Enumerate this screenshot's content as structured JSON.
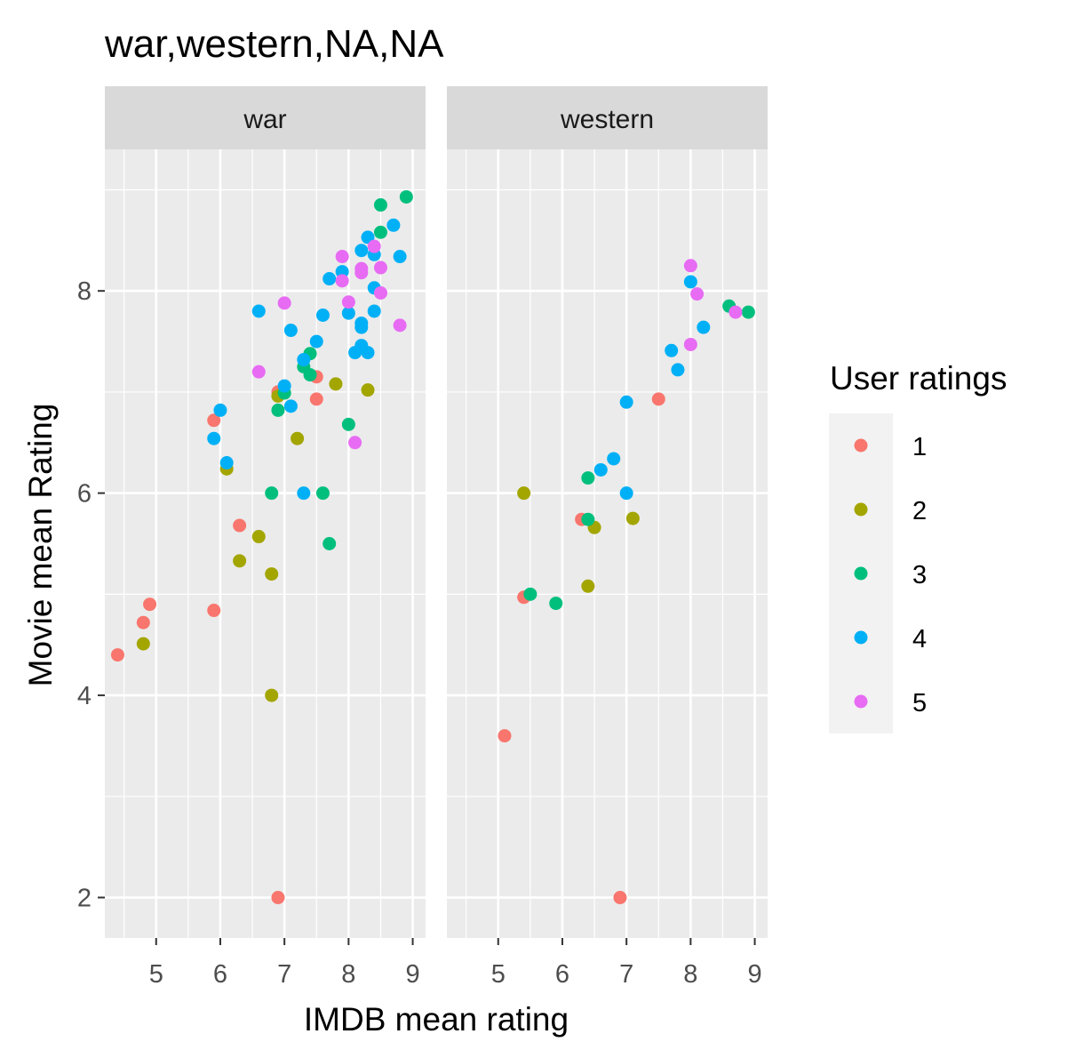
{
  "chart_data": {
    "type": "scatter",
    "title": "war,western,NA,NA",
    "xlabel": "IMDB mean rating",
    "ylabel": "Movie mean Rating",
    "xlim": [
      4.2,
      9.2
    ],
    "ylim": [
      1.6,
      9.4
    ],
    "x_ticks": [
      5,
      6,
      7,
      8,
      9
    ],
    "y_ticks": [
      2,
      4,
      6,
      8
    ],
    "x_tick_labels": [
      "5",
      "6",
      "7",
      "8",
      "9"
    ],
    "y_tick_labels": [
      "2",
      "4",
      "6",
      "8"
    ],
    "grid": true,
    "legend": {
      "title": "User ratings",
      "position": "right",
      "entries": [
        {
          "label": "1",
          "color": "#F8766D"
        },
        {
          "label": "2",
          "color": "#A3A500"
        },
        {
          "label": "3",
          "color": "#00BF7D"
        },
        {
          "label": "4",
          "color": "#00B0F6"
        },
        {
          "label": "5",
          "color": "#E76BF3"
        }
      ]
    },
    "panels": [
      {
        "label": "war",
        "series": [
          {
            "name": "1",
            "color": "#F8766D",
            "points": [
              [
                4.4,
                4.4
              ],
              [
                4.8,
                4.72
              ],
              [
                4.9,
                4.9
              ],
              [
                5.9,
                6.72
              ],
              [
                5.9,
                4.84
              ],
              [
                6.3,
                5.68
              ],
              [
                6.9,
                7.0
              ],
              [
                6.9,
                2.0
              ],
              [
                7.5,
                7.15
              ],
              [
                7.5,
                6.93
              ]
            ]
          },
          {
            "name": "2",
            "color": "#A3A500",
            "points": [
              [
                4.8,
                4.51
              ],
              [
                6.1,
                6.24
              ],
              [
                6.3,
                5.33
              ],
              [
                6.6,
                5.57
              ],
              [
                6.8,
                5.2
              ],
              [
                6.8,
                4.0
              ],
              [
                6.9,
                6.96
              ],
              [
                7.2,
                6.54
              ],
              [
                7.8,
                7.08
              ],
              [
                8.3,
                7.02
              ]
            ]
          },
          {
            "name": "3",
            "color": "#00BF7D",
            "points": [
              [
                6.8,
                6.0
              ],
              [
                6.9,
                6.82
              ],
              [
                7.0,
                6.99
              ],
              [
                7.3,
                7.25
              ],
              [
                7.4,
                7.38
              ],
              [
                7.4,
                7.17
              ],
              [
                7.6,
                6.0
              ],
              [
                7.7,
                5.5
              ],
              [
                8.0,
                6.68
              ],
              [
                8.5,
                8.85
              ],
              [
                8.5,
                8.58
              ],
              [
                8.9,
                8.93
              ]
            ]
          },
          {
            "name": "4",
            "color": "#00B0F6",
            "points": [
              [
                5.9,
                6.54
              ],
              [
                6.0,
                6.82
              ],
              [
                6.1,
                6.3
              ],
              [
                6.6,
                7.8
              ],
              [
                7.0,
                7.06
              ],
              [
                7.1,
                7.61
              ],
              [
                7.1,
                6.86
              ],
              [
                7.3,
                7.32
              ],
              [
                7.3,
                6.0
              ],
              [
                7.5,
                7.5
              ],
              [
                7.6,
                7.76
              ],
              [
                7.7,
                8.12
              ],
              [
                7.9,
                8.19
              ],
              [
                8.0,
                7.78
              ],
              [
                8.1,
                7.39
              ],
              [
                8.2,
                8.4
              ],
              [
                8.2,
                7.68
              ],
              [
                8.2,
                7.64
              ],
              [
                8.2,
                7.46
              ],
              [
                8.3,
                8.53
              ],
              [
                8.3,
                7.39
              ],
              [
                8.4,
                8.36
              ],
              [
                8.4,
                8.03
              ],
              [
                8.4,
                7.8
              ],
              [
                8.7,
                8.65
              ],
              [
                8.8,
                8.34
              ]
            ]
          },
          {
            "name": "5",
            "color": "#E76BF3",
            "points": [
              [
                6.6,
                7.2
              ],
              [
                7.0,
                7.88
              ],
              [
                7.9,
                8.34
              ],
              [
                7.9,
                8.1
              ],
              [
                8.0,
                7.89
              ],
              [
                8.1,
                6.5
              ],
              [
                8.2,
                8.22
              ],
              [
                8.2,
                8.18
              ],
              [
                8.4,
                8.44
              ],
              [
                8.5,
                8.23
              ],
              [
                8.5,
                7.98
              ],
              [
                8.8,
                7.66
              ]
            ]
          }
        ]
      },
      {
        "label": "western",
        "series": [
          {
            "name": "1",
            "color": "#F8766D",
            "points": [
              [
                5.1,
                3.6
              ],
              [
                5.4,
                4.97
              ],
              [
                6.3,
                5.74
              ],
              [
                6.9,
                2.0
              ],
              [
                7.5,
                6.93
              ]
            ]
          },
          {
            "name": "2",
            "color": "#A3A500",
            "points": [
              [
                5.4,
                6.0
              ],
              [
                6.4,
                5.08
              ],
              [
                6.5,
                5.66
              ],
              [
                7.1,
                5.75
              ]
            ]
          },
          {
            "name": "3",
            "color": "#00BF7D",
            "points": [
              [
                5.5,
                5.0
              ],
              [
                5.9,
                4.91
              ],
              [
                6.4,
                6.15
              ],
              [
                6.4,
                5.74
              ],
              [
                8.6,
                7.85
              ],
              [
                8.9,
                7.79
              ]
            ]
          },
          {
            "name": "4",
            "color": "#00B0F6",
            "points": [
              [
                6.6,
                6.23
              ],
              [
                6.8,
                6.34
              ],
              [
                7.0,
                6.9
              ],
              [
                7.0,
                6.0
              ],
              [
                7.7,
                7.41
              ],
              [
                7.8,
                7.22
              ],
              [
                8.0,
                8.09
              ],
              [
                8.2,
                7.64
              ]
            ]
          },
          {
            "name": "5",
            "color": "#E76BF3",
            "points": [
              [
                8.0,
                8.25
              ],
              [
                8.0,
                7.47
              ],
              [
                8.1,
                7.97
              ],
              [
                8.7,
                7.79
              ]
            ]
          }
        ]
      }
    ]
  }
}
